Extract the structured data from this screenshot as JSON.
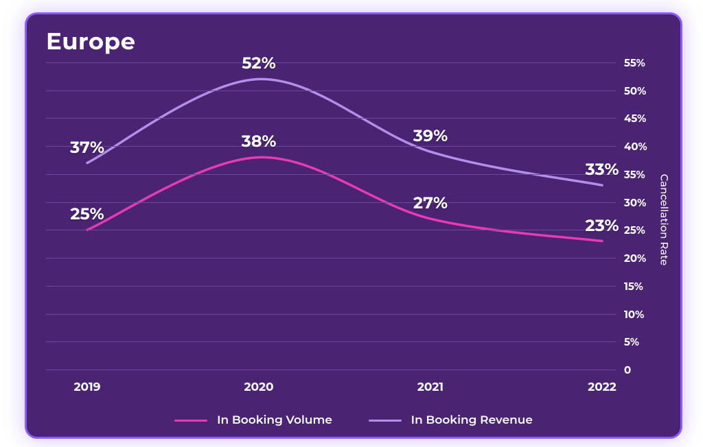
{
  "chart": {
    "type": "line",
    "title": "Europe",
    "y_axis_title": "Cancellation Rate",
    "background_color": "#4a2373",
    "frame_border_color": "#8a5cff",
    "grid_color": "#6b4a99",
    "text_color": "#ffffff",
    "title_fontsize": 34,
    "tick_fontsize": 15,
    "xtick_fontsize": 17,
    "data_label_fontsize": 24,
    "line_width": 3.5,
    "ylim_min": 0,
    "ylim_max": 55,
    "ytick_step": 5,
    "yticks": [
      "0",
      "5%",
      "10%",
      "15%",
      "20%",
      "25%",
      "30%",
      "35%",
      "40%",
      "45%",
      "50%",
      "55%"
    ],
    "categories": [
      "2019",
      "2020",
      "2021",
      "2022"
    ],
    "series": [
      {
        "id": "volume",
        "label": "In Booking Volume",
        "color": "#e83ab3",
        "values": [
          25,
          38,
          27,
          23
        ],
        "value_labels": [
          "25%",
          "38%",
          "27%",
          "23%"
        ]
      },
      {
        "id": "revenue",
        "label": "In Booking Revenue",
        "color": "#b28fe8",
        "values": [
          37,
          52,
          39,
          33
        ],
        "value_labels": [
          "37%",
          "52%",
          "39%",
          "33%"
        ]
      }
    ]
  }
}
